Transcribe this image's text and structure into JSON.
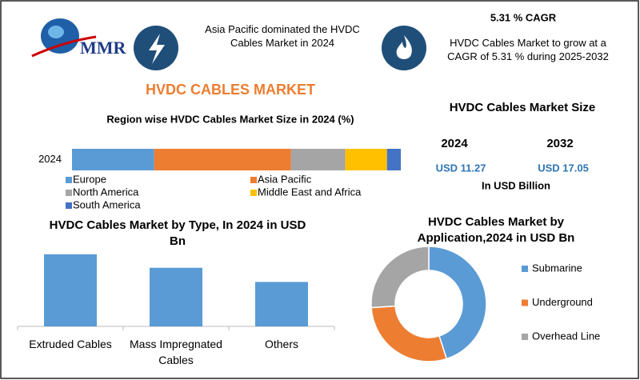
{
  "header": {
    "logo": "MMR",
    "headline": "Asia Pacific dominated the HVDC Cables Market in 2024",
    "cagr": "5.31 % CAGR",
    "cagr_text": "HVDC Cables Market to grow at a CAGR of 5.31 % during 2025-2032",
    "title": "HVDC CABLES MARKET"
  },
  "market_size": {
    "title": "HVDC Cables Market Size",
    "years": [
      "2024",
      "2032"
    ],
    "values": [
      "USD 11.27",
      "USD 17.05"
    ],
    "unit": "In USD Billion"
  },
  "chart_data": [
    {
      "type": "bar",
      "stacked": true,
      "orientation": "horizontal",
      "title": "Region wise HVDC Cables Market Size in 2024 (%)",
      "categories": [
        "2024"
      ],
      "xlim": [
        0,
        100
      ],
      "series": [
        {
          "name": "Europe",
          "color": "#5b9bd5",
          "values": [
            25
          ]
        },
        {
          "name": "Asia Pacific",
          "color": "#ed7d31",
          "values": [
            41.6
          ]
        },
        {
          "name": "North America",
          "color": "#a5a5a5",
          "values": [
            16.5
          ]
        },
        {
          "name": "Middle East and Africa",
          "color": "#ffc000",
          "values": [
            12.7
          ]
        },
        {
          "name": "South America",
          "color": "#4472c4",
          "values": [
            4.2
          ]
        }
      ]
    },
    {
      "type": "bar",
      "title": "HVDC Cables Market  by  Type, In 2024 in USD Bn",
      "categories": [
        "Extruded Cables",
        "Mass Impregnated Cables",
        "Others"
      ],
      "values": [
        4.64,
        3.77,
        2.86
      ],
      "color": "#5b9bd5",
      "ylim": [
        0,
        5.3
      ]
    },
    {
      "type": "donut",
      "title": "HVDC Cables Market by Application,2024 in USD Bn",
      "categories": [
        "Submarine",
        "Underground",
        "Overhead Line"
      ],
      "values": [
        45,
        29,
        26
      ],
      "colors": [
        "#5b9bd5",
        "#ed7d31",
        "#a5a5a5"
      ]
    }
  ]
}
